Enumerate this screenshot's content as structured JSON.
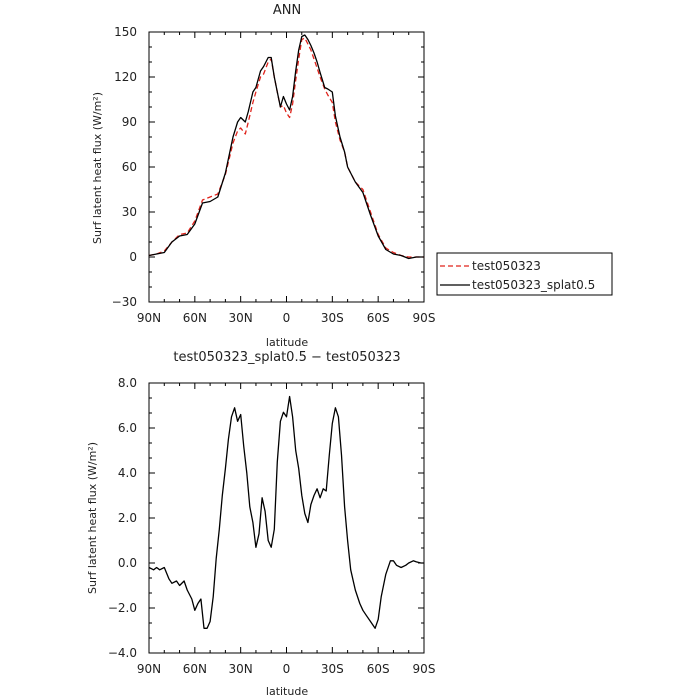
{
  "chart_data": [
    {
      "type": "line",
      "title": "ANN",
      "xlabel": "latitude",
      "ylabel": "Surf latent heat flux (W/m²)",
      "ylim": [
        -30,
        150
      ],
      "xlim": [
        90,
        -90
      ],
      "xticks": [
        90,
        60,
        30,
        0,
        -30,
        -60,
        -90
      ],
      "xtick_labels": [
        "90N",
        "60N",
        "30N",
        "0",
        "30S",
        "60S",
        "90S"
      ],
      "yticks": [
        -30,
        0,
        30,
        60,
        90,
        120,
        150
      ],
      "ytick_labels": [
        "−30",
        "0",
        "30",
        "60",
        "90",
        "120",
        "150"
      ],
      "legend": {
        "placement": "right",
        "entries": [
          "test050323",
          "test050323_splat0.5"
        ]
      },
      "series": [
        {
          "name": "test050323",
          "color": "#e0231b",
          "dash": "dashed",
          "x": [
            90,
            85,
            80,
            75,
            70,
            65,
            60,
            55,
            50,
            45,
            40,
            35,
            32,
            30,
            27,
            25,
            22,
            20,
            17,
            15,
            12,
            10,
            8,
            6,
            4,
            2,
            0,
            -2,
            -4,
            -6,
            -8,
            -10,
            -12,
            -14,
            -16,
            -18,
            -20,
            -22,
            -25,
            -27,
            -30,
            -32,
            -35,
            -38,
            -40,
            -45,
            -50,
            -55,
            -60,
            -65,
            -70,
            -75,
            -80,
            -85,
            -90
          ],
          "y": [
            1,
            2,
            4,
            10,
            15,
            16,
            24,
            38,
            40,
            42,
            55,
            76,
            84,
            86,
            82,
            90,
            103,
            110,
            120,
            122,
            130,
            132,
            120,
            110,
            100,
            101,
            96,
            93,
            102,
            118,
            132,
            145,
            146,
            142,
            138,
            132,
            126,
            120,
            112,
            108,
            103,
            90,
            78,
            70,
            60,
            50,
            45,
            30,
            15,
            6,
            3,
            1,
            0,
            0,
            0
          ]
        },
        {
          "name": "test050323_splat0.5",
          "color": "#000000",
          "dash": "solid",
          "x": [
            90,
            85,
            80,
            75,
            70,
            65,
            60,
            55,
            50,
            45,
            40,
            35,
            32,
            30,
            27,
            25,
            22,
            20,
            17,
            15,
            12,
            10,
            8,
            6,
            4,
            2,
            0,
            -2,
            -4,
            -6,
            -8,
            -10,
            -12,
            -14,
            -16,
            -18,
            -20,
            -22,
            -25,
            -27,
            -30,
            -32,
            -35,
            -38,
            -40,
            -45,
            -50,
            -55,
            -60,
            -65,
            -70,
            -75,
            -80,
            -85,
            -90
          ],
          "y": [
            1,
            2,
            3,
            10,
            14,
            15,
            22,
            36,
            37,
            40,
            56,
            80,
            90,
            93,
            90,
            97,
            110,
            113,
            124,
            127,
            133,
            133,
            120,
            110,
            100,
            107,
            102,
            98,
            107,
            124,
            138,
            147,
            148,
            145,
            141,
            136,
            130,
            123,
            113,
            112,
            110,
            94,
            80,
            70,
            60,
            50,
            43,
            28,
            14,
            5,
            2,
            1,
            -1,
            0,
            0
          ]
        }
      ]
    },
    {
      "type": "line",
      "title": "test050323_splat0.5 − test050323",
      "xlabel": "latitude",
      "ylabel": "Surf latent heat flux (W/m²)",
      "ylim": [
        -4.0,
        8.0
      ],
      "xlim": [
        90,
        -90
      ],
      "xticks": [
        90,
        60,
        30,
        0,
        -30,
        -60,
        -90
      ],
      "xtick_labels": [
        "90N",
        "60N",
        "30N",
        "0",
        "30S",
        "60S",
        "90S"
      ],
      "yticks": [
        -4,
        -2,
        0,
        2,
        4,
        6,
        8
      ],
      "ytick_labels": [
        "−4.0",
        "−2.0",
        "0.0",
        "2.0",
        "4.0",
        "6.0",
        "8.0"
      ],
      "series": [
        {
          "color": "#000000",
          "dash": "solid",
          "x": [
            90,
            87,
            85,
            83,
            80,
            77,
            75,
            72,
            70,
            67,
            65,
            62,
            60,
            58,
            56,
            54,
            52,
            50,
            48,
            46,
            44,
            42,
            40,
            38,
            36,
            34,
            32,
            30,
            28,
            26,
            24,
            22,
            20,
            18,
            16,
            14,
            12,
            10,
            8,
            6,
            4,
            2,
            0,
            -2,
            -4,
            -6,
            -8,
            -10,
            -12,
            -14,
            -16,
            -18,
            -20,
            -22,
            -24,
            -26,
            -28,
            -30,
            -32,
            -34,
            -36,
            -38,
            -40,
            -42,
            -45,
            -48,
            -50,
            -52,
            -55,
            -58,
            -60,
            -62,
            -65,
            -68,
            -70,
            -72,
            -75,
            -78,
            -80,
            -83,
            -85,
            -88,
            -90
          ],
          "y": [
            -0.2,
            -0.3,
            -0.2,
            -0.3,
            -0.2,
            -0.7,
            -0.9,
            -0.8,
            -1.0,
            -0.8,
            -1.2,
            -1.6,
            -2.1,
            -1.8,
            -1.6,
            -2.9,
            -2.9,
            -2.6,
            -1.5,
            0.2,
            1.5,
            3.0,
            4.2,
            5.5,
            6.5,
            6.9,
            6.3,
            6.6,
            5.2,
            4.0,
            2.5,
            1.8,
            0.7,
            1.3,
            2.9,
            2.3,
            1.0,
            0.7,
            1.5,
            4.5,
            6.3,
            6.7,
            6.5,
            7.4,
            6.5,
            5.0,
            4.2,
            3.0,
            2.2,
            1.8,
            2.6,
            3.0,
            3.3,
            2.9,
            3.3,
            3.2,
            4.8,
            6.2,
            6.9,
            6.5,
            4.8,
            2.5,
            1.0,
            -0.3,
            -1.2,
            -1.8,
            -2.1,
            -2.3,
            -2.6,
            -2.9,
            -2.5,
            -1.5,
            -0.5,
            0.1,
            0.1,
            -0.1,
            -0.2,
            -0.1,
            0.0,
            0.1,
            0.05,
            0.0,
            0.0
          ]
        }
      ]
    }
  ]
}
